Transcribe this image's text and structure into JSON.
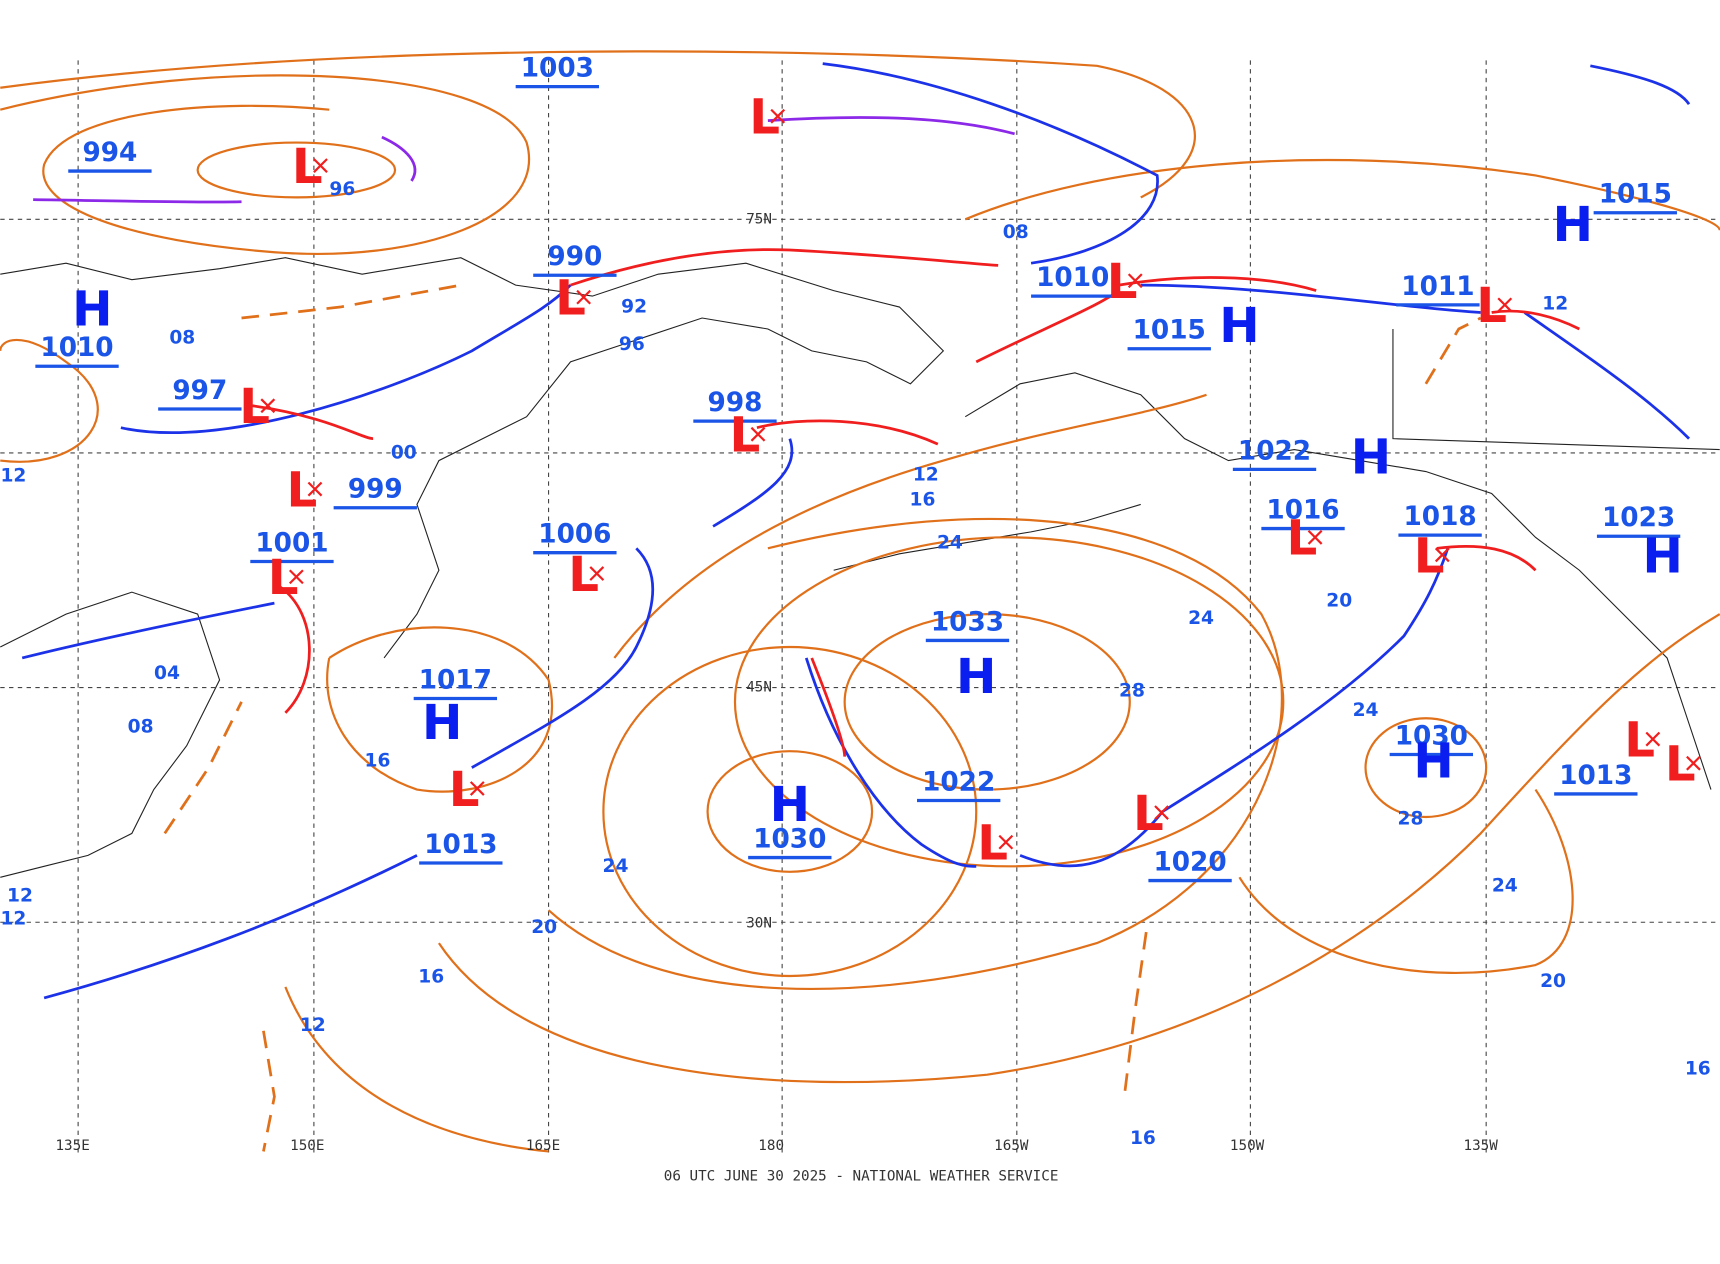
{
  "map": {
    "footer": "06 UTC JUNE 30 2025 - NATIONAL WEATHER SERVICE",
    "longitude_labels": [
      "135E",
      "150E",
      "165E",
      "180",
      "165W",
      "150W",
      "135W"
    ],
    "latitude_labels": [
      "75N",
      "45N",
      "30N"
    ],
    "center_pressures": [
      "1003",
      "994",
      "990",
      "1010",
      "997",
      "999",
      "1001",
      "1006",
      "998",
      "1017",
      "1013",
      "1033",
      "1022",
      "1030",
      "1010",
      "1015",
      "1022",
      "1016",
      "1018",
      "1030",
      "1020",
      "1011",
      "1015",
      "1023",
      "1013"
    ],
    "pressure_systems": [
      "L",
      "L",
      "L",
      "H",
      "L",
      "L",
      "L",
      "L",
      "L",
      "H",
      "L",
      "H",
      "H",
      "L",
      "L",
      "H",
      "H",
      "L",
      "L",
      "H",
      "L",
      "L",
      "H",
      "H",
      "L",
      "L"
    ],
    "isobar_values": [
      "96",
      "92",
      "96",
      "08",
      "00",
      "04",
      "08",
      "12",
      "16",
      "12",
      "12",
      "24",
      "20",
      "16",
      "12",
      "24",
      "16",
      "12",
      "08",
      "20",
      "24",
      "28",
      "24",
      "28",
      "12",
      "24",
      "20",
      "16",
      "16"
    ]
  }
}
